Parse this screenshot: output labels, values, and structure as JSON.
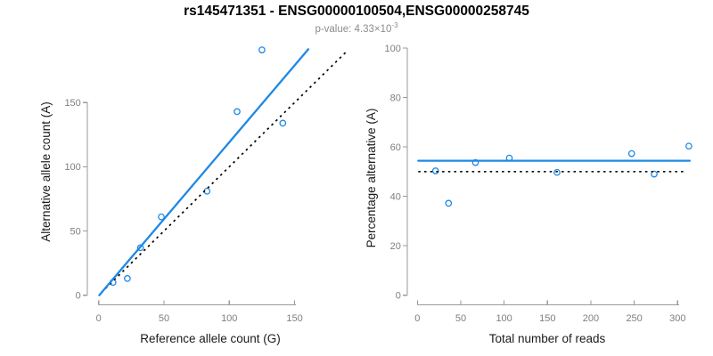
{
  "header": {
    "title": "rs145471351 - ENSG00000100504,ENSG00000258745",
    "subtitle_prefix": "p-value: 4.33×10",
    "subtitle_exponent": "-3"
  },
  "colors": {
    "accent_blue": "#1E88E5",
    "identity_black": "#000000",
    "axis_line": "#9a9a9a",
    "tick_label": "#7f7f7f",
    "axis_title": "#1a1a1a",
    "background": "#ffffff"
  },
  "chart_data": [
    {
      "type": "scatter",
      "name": "allele-count-scatter",
      "xlabel": "Reference allele count (G)",
      "ylabel": "Alternative allele count (A)",
      "xlim": [
        0,
        160
      ],
      "ylim": [
        0,
        195
      ],
      "x_ticks": [
        0,
        50,
        100,
        150
      ],
      "y_ticks": [
        0,
        50,
        100,
        150
      ],
      "grid": false,
      "legend": "none",
      "points": [
        [
          11,
          10
        ],
        [
          22,
          13
        ],
        [
          32,
          37
        ],
        [
          48,
          61
        ],
        [
          83,
          81
        ],
        [
          106,
          143
        ],
        [
          125,
          191
        ],
        [
          141,
          134
        ]
      ],
      "lines": [
        {
          "name": "identity-line",
          "style": "dotted",
          "color": "#000000",
          "x1": 2,
          "y1": 2,
          "x2": 189.5,
          "y2": 189.5
        },
        {
          "name": "regression-line",
          "style": "solid",
          "color": "#1E88E5",
          "x1": 0.5,
          "y1": 0,
          "x2": 160.5,
          "y2": 191.5
        }
      ]
    },
    {
      "type": "scatter",
      "name": "percentage-scatter",
      "xlabel": "Total number of reads",
      "ylabel": "Percentage alternative (A)",
      "xlim": [
        0,
        315
      ],
      "ylim": [
        0,
        100
      ],
      "x_ticks": [
        0,
        50,
        100,
        150,
        200,
        250,
        300
      ],
      "y_ticks": [
        0,
        20,
        40,
        60,
        80,
        100
      ],
      "grid": false,
      "legend": "none",
      "points": [
        [
          21,
          50.3
        ],
        [
          36,
          37.2
        ],
        [
          67,
          53.7
        ],
        [
          106,
          55.5
        ],
        [
          161,
          49.7
        ],
        [
          247,
          57.3
        ],
        [
          273,
          49
        ],
        [
          313,
          60.3
        ]
      ],
      "lines": [
        {
          "name": "expected-50pct-line",
          "style": "dotted",
          "color": "#000000",
          "x1": 1,
          "y1": 50,
          "x2": 310,
          "y2": 50
        },
        {
          "name": "fitted-percentage-line",
          "style": "solid",
          "color": "#1E88E5",
          "x1": 1,
          "y1": 54.4,
          "x2": 314,
          "y2": 54.4
        }
      ]
    }
  ]
}
